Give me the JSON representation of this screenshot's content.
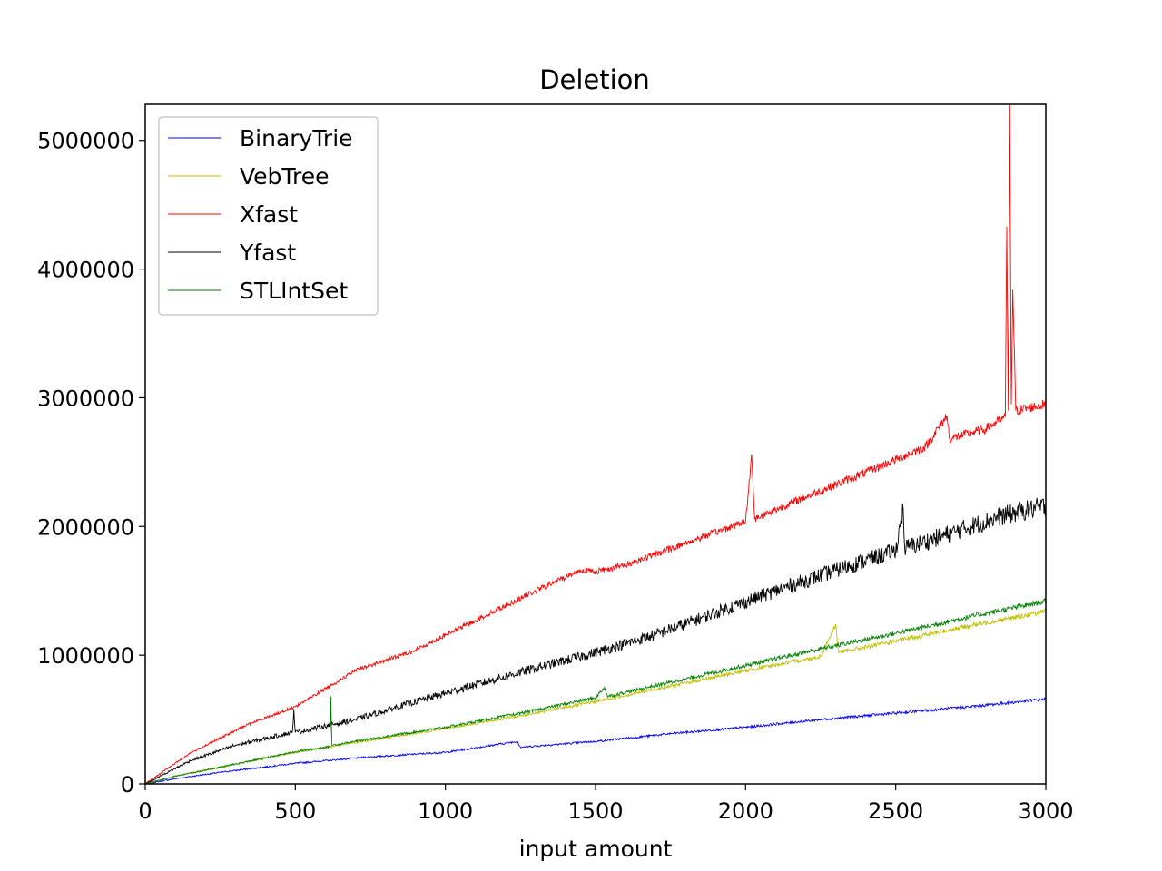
{
  "chart_data": {
    "type": "line",
    "title": "Deletion",
    "xlabel": "input amount",
    "ylabel": "",
    "xlim": [
      0,
      3000
    ],
    "ylim": [
      0,
      5280000
    ],
    "xticks": [
      0,
      500,
      1000,
      1500,
      2000,
      2500,
      3000
    ],
    "xtick_labels": [
      "0",
      "500",
      "1000",
      "1500",
      "2000",
      "2500",
      "3000"
    ],
    "yticks": [
      0,
      1000000,
      2000000,
      3000000,
      4000000,
      5000000
    ],
    "ytick_labels": [
      "0",
      "1000000",
      "2000000",
      "3000000",
      "4000000",
      "5000000"
    ],
    "grid": false,
    "legend_position": "upper-left",
    "series": [
      {
        "name": "BinaryTrie",
        "color": "#0000ff",
        "x": [
          0,
          100,
          250,
          500,
          750,
          1000,
          1240,
          1250,
          1500,
          1750,
          2000,
          2250,
          2500,
          2750,
          3000
        ],
        "y": [
          0,
          40000,
          90000,
          160000,
          210000,
          245000,
          330000,
          285000,
          330000,
          390000,
          440000,
          500000,
          550000,
          600000,
          660000
        ]
      },
      {
        "name": "VebTree",
        "color": "#bfbf00",
        "x": [
          0,
          100,
          250,
          500,
          750,
          1000,
          1250,
          1500,
          1750,
          2000,
          2250,
          2300,
          2310,
          2500,
          2750,
          3000
        ],
        "y": [
          0,
          60000,
          130000,
          245000,
          340000,
          430000,
          530000,
          640000,
          760000,
          880000,
          990000,
          1240000,
          1020000,
          1110000,
          1230000,
          1340000
        ]
      },
      {
        "name": "Xfast",
        "color": "#ff0000",
        "x": [
          0,
          150,
          340,
          500,
          700,
          900,
          1100,
          1300,
          1450,
          1500,
          1600,
          1800,
          2000,
          2020,
          2030,
          2200,
          2400,
          2600,
          2670,
          2680,
          2800,
          2865,
          2870,
          2875,
          2880,
          2885,
          2890,
          2900,
          3000
        ],
        "y": [
          0,
          240000,
          460000,
          600000,
          880000,
          1040000,
          1270000,
          1500000,
          1660000,
          1650000,
          1700000,
          1870000,
          2040000,
          2560000,
          2060000,
          2230000,
          2420000,
          2620000,
          2860000,
          2680000,
          2760000,
          2850000,
          4330000,
          2900000,
          5280000,
          2950000,
          3840000,
          2900000,
          2950000
        ]
      },
      {
        "name": "Yfast",
        "color": "#000000",
        "x": [
          0,
          150,
          300,
          490,
          495,
          500,
          700,
          900,
          1100,
          1300,
          1500,
          1700,
          1900,
          2100,
          2300,
          2500,
          2525,
          2530,
          2700,
          2850,
          3000
        ],
        "y": [
          0,
          180000,
          300000,
          400000,
          580000,
          400000,
          500000,
          640000,
          770000,
          900000,
          1020000,
          1160000,
          1330000,
          1500000,
          1660000,
          1810000,
          2140000,
          1830000,
          1960000,
          2080000,
          2160000
        ]
      },
      {
        "name": "STLIntSet",
        "color": "#008000",
        "x": [
          0,
          100,
          250,
          500,
          615,
          618,
          622,
          750,
          1000,
          1250,
          1500,
          1530,
          1540,
          1750,
          2000,
          2250,
          2500,
          2750,
          3000
        ],
        "y": [
          0,
          60000,
          130000,
          250000,
          290000,
          680000,
          300000,
          350000,
          440000,
          550000,
          670000,
          750000,
          680000,
          790000,
          920000,
          1050000,
          1170000,
          1300000,
          1420000
        ]
      }
    ]
  }
}
